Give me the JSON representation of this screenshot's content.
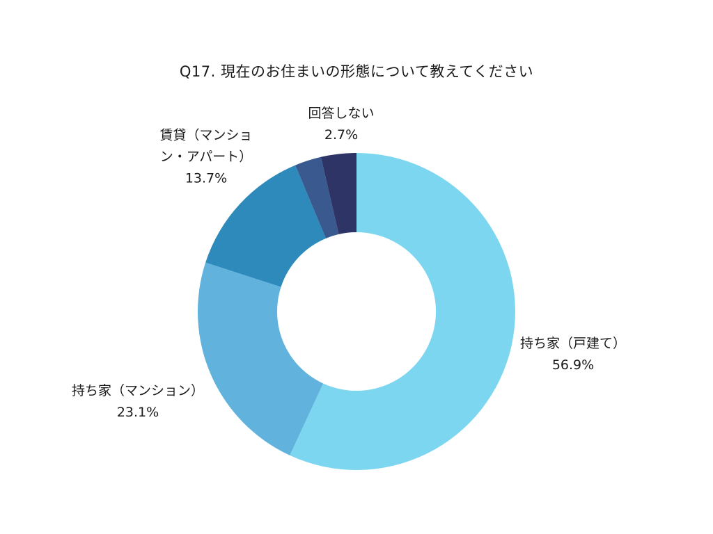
{
  "chart_data": {
    "type": "pie",
    "title": "Q17. 現在のお住まいの形態について教えてください",
    "donut": true,
    "unit": "%",
    "slices": [
      {
        "label": "持ち家（戸建て）",
        "label_lines": [
          "持ち家（戸建て）"
        ],
        "value": 56.9,
        "value_label": "56.9%",
        "color": "#7dd6ef"
      },
      {
        "label": "持ち家（マンション）",
        "label_lines": [
          "持ち家（マンション）"
        ],
        "value": 23.1,
        "value_label": "23.1%",
        "color": "#61b3dd"
      },
      {
        "label": "賃貸（マンション・アパート）",
        "label_lines": [
          "賃貸（マンショ",
          "ン・アパート）"
        ],
        "value": 13.7,
        "value_label": "13.7%",
        "color": "#2d8aba"
      },
      {
        "label": "回答しない",
        "label_lines": [
          "回答しない"
        ],
        "value": 2.7,
        "value_label": "2.7%",
        "color": "#3a5a8f"
      },
      {
        "label": "",
        "label_lines": [],
        "value": 3.6,
        "value_label": "",
        "color": "#2e3566"
      }
    ]
  }
}
